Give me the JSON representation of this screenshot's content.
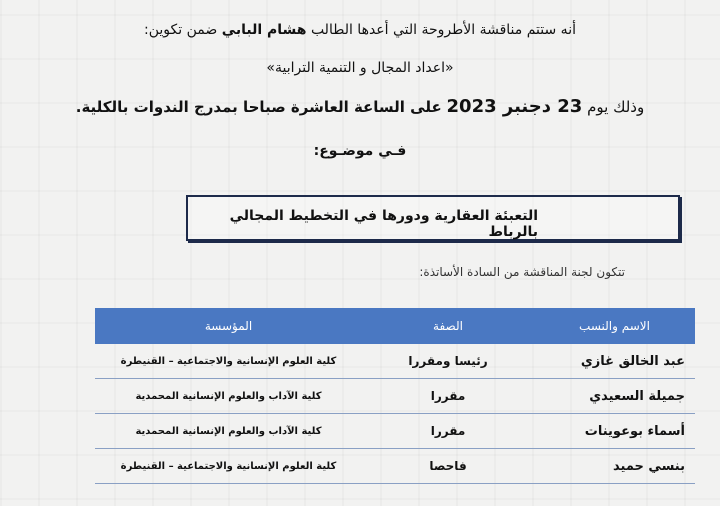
{
  "announcement": {
    "line1_prefix": "أنه ستتم مناقشة الأطروحة التي أعدها الطالب",
    "student_name": "هشام البابي",
    "line1_suffix": "ضمن تكوين:",
    "program": "«اعداد المجال و التنمية الترابية»",
    "date_prefix": "وذلك يوم",
    "date_bold": "23 دجنبر 2023",
    "date_rest": "على الساعة العاشرة صباحا بمدرج  الندوات بالكلية.",
    "topic_label": "فـي موضـوع:",
    "topic": "التعبئة العقارية ودورها في التخطيط المجالي بالرباط",
    "committee_intro": "تتكون لجنة المناقشة من السادة الأساتذة:"
  },
  "table": {
    "header_color": "#4a78c2",
    "headers": [
      "الاسم والنسب",
      "الصفة",
      "المؤسسة"
    ],
    "rows": [
      [
        "عبد الخالق غازي",
        "رئيسا ومقررا",
        "كلية العلوم الإنسانية والاجتماعية – القنيطرة"
      ],
      [
        "جميلة السعيدي",
        "مقررا",
        "كلية الآداب والعلوم الإنسانية المحمدية"
      ],
      [
        "أسماء بوعوينات",
        "مقررا",
        "كلية الآداب والعلوم الإنسانية المحمدية"
      ],
      [
        "بنسي حميد",
        "فاحصا",
        "كلية العلوم الإنسانية والاجتماعية – القنيطرة"
      ]
    ]
  }
}
